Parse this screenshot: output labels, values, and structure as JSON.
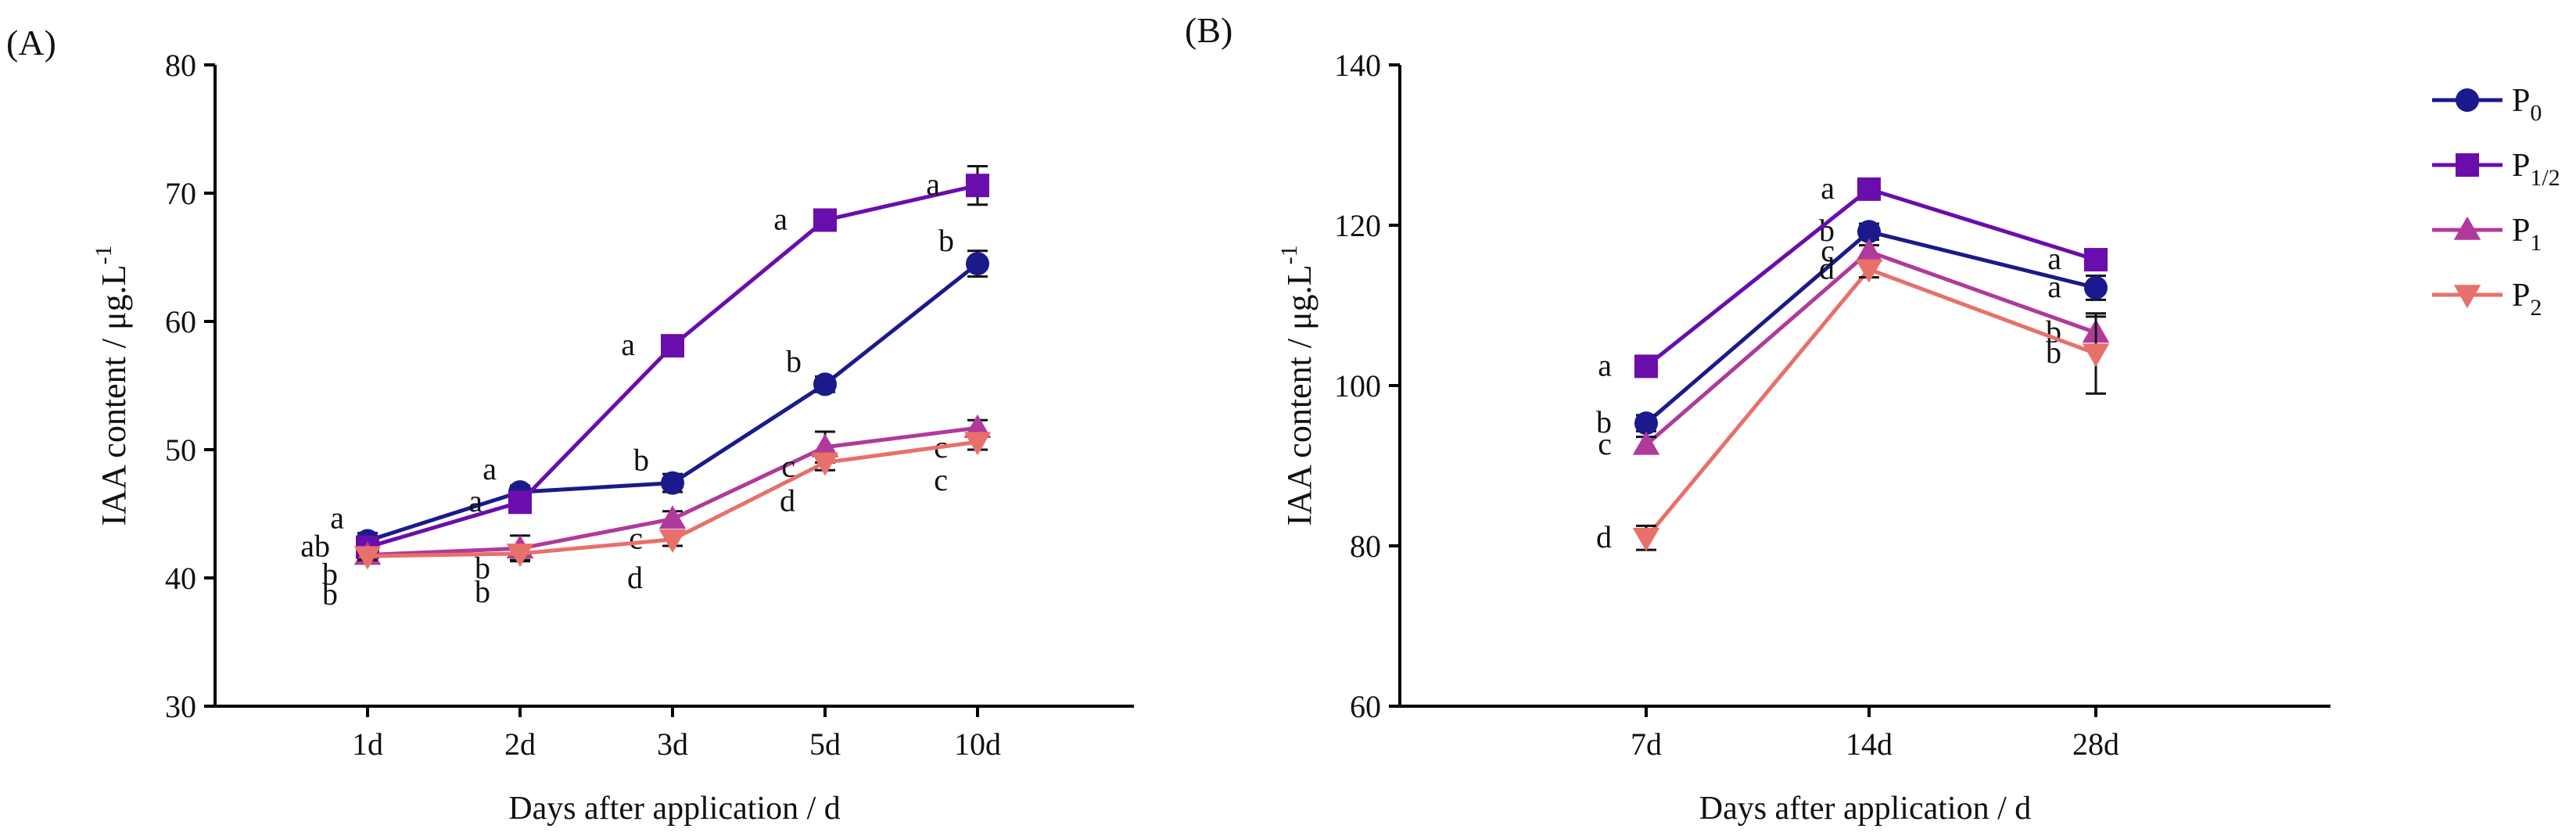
{
  "panel_labels": [
    "(A)",
    "(B)"
  ],
  "legend": {
    "items": [
      {
        "base": "P",
        "sub": "0",
        "color": "#1a1a8c",
        "marker": "circle"
      },
      {
        "base": "P",
        "sub": "1/2",
        "color": "#6a0dad",
        "marker": "square"
      },
      {
        "base": "P",
        "sub": "1",
        "color": "#b03a9b",
        "marker": "triangle-up"
      },
      {
        "base": "P",
        "sub": "2",
        "color": "#e8706a",
        "marker": "triangle-down"
      }
    ]
  },
  "chart_data": [
    {
      "type": "line",
      "panel": "(A)",
      "title": "",
      "xlabel": "Days after application / d",
      "ylabel": "IAA content / μg.L",
      "ylabel_sup": "-1",
      "categories": [
        "1d",
        "2d",
        "3d",
        "5d",
        "10d"
      ],
      "ylim": [
        30,
        80
      ],
      "yticks": [
        30,
        40,
        50,
        60,
        70,
        80
      ],
      "series": [
        {
          "name": "P0",
          "color": "#1a1a8c",
          "marker": "circle",
          "values": [
            42.9,
            46.7,
            47.4,
            55.1,
            64.5
          ],
          "errors": [
            0.6,
            0.5,
            0.7,
            0.6,
            1.0
          ],
          "letters": [
            "a",
            "a",
            "b",
            "b",
            "b"
          ]
        },
        {
          "name": "P1/2",
          "color": "#6a0dad",
          "marker": "square",
          "values": [
            42.4,
            45.9,
            58.1,
            67.9,
            70.6
          ],
          "errors": [
            0.4,
            0.5,
            0.5,
            0.6,
            1.5
          ],
          "letters": [
            "ab",
            "a",
            "a",
            "a",
            "a"
          ]
        },
        {
          "name": "P1",
          "color": "#b03a9b",
          "marker": "triangle-up",
          "values": [
            41.8,
            42.3,
            44.6,
            50.2,
            51.7
          ],
          "errors": [
            0.3,
            1.0,
            0.6,
            1.2,
            0.6
          ],
          "letters": [
            "b",
            "b",
            "c",
            "c",
            "c"
          ]
        },
        {
          "name": "P2",
          "color": "#e8706a",
          "marker": "triangle-down",
          "values": [
            41.7,
            41.9,
            43.0,
            49.0,
            50.6
          ],
          "errors": [
            0.3,
            0.5,
            0.5,
            0.6,
            0.6
          ],
          "letters": [
            "b",
            "b",
            "d",
            "d",
            "c"
          ]
        }
      ]
    },
    {
      "type": "line",
      "panel": "(B)",
      "title": "",
      "xlabel": "Days after application / d",
      "ylabel": "IAA content / μg.L",
      "ylabel_sup": "-1",
      "categories": [
        "7d",
        "14d",
        "28d"
      ],
      "ylim": [
        60,
        140
      ],
      "yticks": [
        60,
        80,
        100,
        120,
        140
      ],
      "series": [
        {
          "name": "P0",
          "color": "#1a1a8c",
          "marker": "circle",
          "values": [
            95.3,
            119.2,
            112.2
          ],
          "errors": [
            1.0,
            1.0,
            1.5
          ],
          "letters": [
            "b",
            "b",
            "a"
          ]
        },
        {
          "name": "P1/2",
          "color": "#6a0dad",
          "marker": "square",
          "values": [
            102.4,
            124.5,
            115.7
          ],
          "errors": [
            1.0,
            0.8,
            1.2
          ],
          "letters": [
            "a",
            "a",
            "a"
          ]
        },
        {
          "name": "P1",
          "color": "#b03a9b",
          "marker": "triangle-up",
          "values": [
            92.6,
            116.7,
            106.6
          ],
          "errors": [
            1.0,
            0.8,
            2.0
          ],
          "letters": [
            "c",
            "c",
            "b"
          ]
        },
        {
          "name": "P2",
          "color": "#e8706a",
          "marker": "triangle-down",
          "values": [
            81.0,
            114.5,
            104.0
          ],
          "errors": [
            1.5,
            1.0,
            5.0
          ],
          "letters": [
            "d",
            "d",
            "b"
          ]
        }
      ]
    }
  ]
}
